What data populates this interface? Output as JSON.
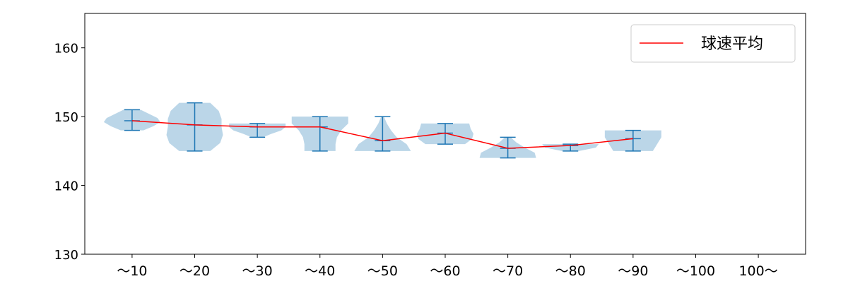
{
  "chart_data": {
    "type": "violin",
    "title": "",
    "xlabel": "",
    "ylabel": "",
    "categories": [
      "～10",
      "～20",
      "～30",
      "～40",
      "～50",
      "～60",
      "～70",
      "～80",
      "～90",
      "～100",
      "100～"
    ],
    "ylim": [
      130,
      165
    ],
    "yticks": [
      130,
      140,
      150,
      160
    ],
    "violins": [
      {
        "min": 148,
        "max": 151,
        "mean": 149.4,
        "density": [
          0.4,
          0.75,
          1.0,
          0.9,
          0.6,
          0.3
        ]
      },
      {
        "min": 145,
        "max": 152,
        "mean": 148.8,
        "density": [
          0.55,
          0.9,
          1.0,
          0.95,
          0.95,
          0.85,
          0.55
        ]
      },
      {
        "min": 147,
        "max": 149,
        "mean": 148.5,
        "density": [
          0.2,
          0.5,
          0.85,
          1.0,
          1.0
        ]
      },
      {
        "min": 145,
        "max": 150,
        "mean": 148.5,
        "density": [
          0.55,
          0.55,
          0.6,
          0.75,
          1.0,
          1.0
        ]
      },
      {
        "min": 145,
        "max": 150,
        "mean": 146.5,
        "density": [
          1.0,
          0.85,
          0.5,
          0.3,
          0.15,
          0.05
        ]
      },
      {
        "min": 146,
        "max": 149,
        "mean": 147.6,
        "density": [
          0.7,
          0.95,
          1.0,
          0.9,
          0.85
        ]
      },
      {
        "min": 144,
        "max": 147,
        "mean": 145.4,
        "density": [
          1.0,
          0.95,
          0.6,
          0.3,
          0.1
        ]
      },
      {
        "min": 145,
        "max": 146,
        "mean": 145.8,
        "density": [
          0.3,
          0.9,
          1.0
        ]
      },
      {
        "min": 145,
        "max": 148,
        "mean": 146.8,
        "density": [
          0.7,
          0.85,
          1.0,
          1.0
        ]
      },
      null,
      null
    ],
    "series": [
      {
        "name": "球速平均",
        "color": "#ff0000",
        "values": [
          149.4,
          148.8,
          148.5,
          148.5,
          146.5,
          147.6,
          145.4,
          145.8,
          146.8,
          null,
          null
        ]
      }
    ],
    "legend": {
      "placement": "top-right",
      "label": "球速平均"
    },
    "colors": {
      "violin_fill": "#1f77b4",
      "violin_alpha": 0.3,
      "whisker": "#1f77b4",
      "mean_line": "#ff0000"
    }
  }
}
